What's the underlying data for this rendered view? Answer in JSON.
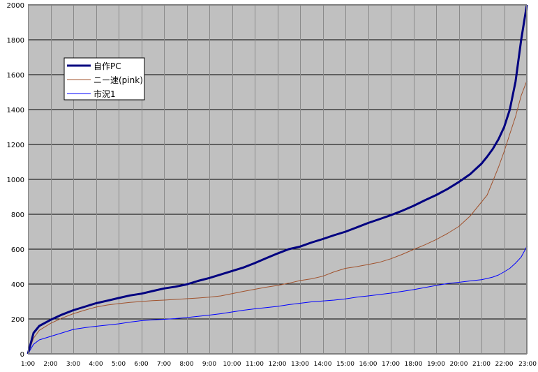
{
  "chart_data": {
    "type": "line",
    "title": "",
    "xlabel": "",
    "ylabel": "",
    "ylim": [
      0,
      2000
    ],
    "yticks": [
      0,
      200,
      400,
      600,
      800,
      1000,
      1200,
      1400,
      1600,
      1800,
      2000
    ],
    "x_tick_labels": [
      "1:00",
      "2:00",
      "3:00",
      "4:00",
      "5:00",
      "6:00",
      "7:00",
      "8:00",
      "9:00",
      "10:00",
      "11:00",
      "12:00",
      "13:00",
      "14:00",
      "15:00",
      "16:00",
      "17:00",
      "18:00",
      "19:00",
      "20:00",
      "21:00",
      "22:00",
      "23:00"
    ],
    "xlim_hours": [
      1,
      23
    ],
    "grid": true,
    "plot_background": "#c0c0c0",
    "legend_position": "top-left",
    "x": [
      1,
      1.25,
      1.5,
      2,
      2.5,
      3,
      3.5,
      4,
      4.5,
      5,
      5.5,
      6,
      6.5,
      7,
      7.5,
      8,
      8.5,
      9,
      9.5,
      10,
      10.5,
      11,
      11.5,
      12,
      12.5,
      13,
      13.5,
      14,
      14.5,
      15,
      15.5,
      16,
      16.5,
      17,
      17.5,
      18,
      18.5,
      19,
      19.5,
      20,
      20.5,
      21,
      21.25,
      21.5,
      21.75,
      22,
      22.25,
      22.5,
      22.75,
      23
    ],
    "series": [
      {
        "name": "自作PC",
        "color": "#000080",
        "width": 3,
        "values": [
          0,
          120,
          160,
          195,
          225,
          250,
          270,
          290,
          305,
          320,
          335,
          345,
          360,
          375,
          385,
          398,
          418,
          435,
          455,
          475,
          495,
          520,
          548,
          575,
          600,
          615,
          638,
          658,
          680,
          700,
          725,
          750,
          772,
          795,
          820,
          848,
          880,
          910,
          945,
          985,
          1030,
          1090,
          1130,
          1175,
          1230,
          1300,
          1400,
          1560,
          1800,
          2000
        ]
      },
      {
        "name": "ニー速(pink)",
        "color": "#a0522d",
        "width": 1,
        "values": [
          0,
          90,
          135,
          175,
          205,
          230,
          250,
          268,
          280,
          288,
          295,
          300,
          305,
          308,
          312,
          316,
          320,
          325,
          332,
          345,
          358,
          370,
          382,
          392,
          405,
          420,
          430,
          445,
          470,
          490,
          500,
          512,
          525,
          545,
          570,
          598,
          625,
          655,
          690,
          730,
          790,
          870,
          910,
          990,
          1070,
          1160,
          1260,
          1360,
          1480,
          1565
        ]
      },
      {
        "name": "市況1",
        "color": "#0000ff",
        "width": 1,
        "values": [
          0,
          55,
          80,
          100,
          120,
          140,
          150,
          158,
          165,
          172,
          182,
          190,
          195,
          198,
          202,
          208,
          215,
          222,
          230,
          240,
          250,
          258,
          265,
          272,
          282,
          290,
          298,
          303,
          308,
          315,
          325,
          332,
          340,
          348,
          358,
          368,
          380,
          392,
          403,
          410,
          418,
          425,
          432,
          440,
          452,
          470,
          490,
          520,
          555,
          615
        ]
      }
    ]
  }
}
